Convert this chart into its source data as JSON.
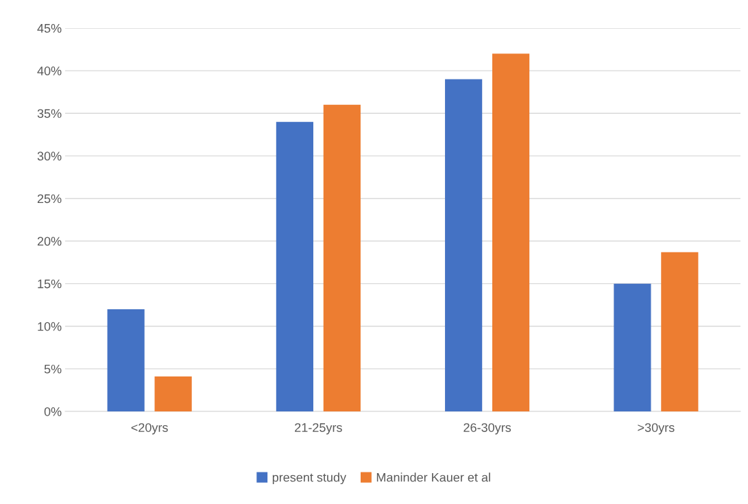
{
  "chart_data": {
    "type": "bar",
    "categories": [
      "<20yrs",
      "21-25yrs",
      "26-30yrs",
      ">30yrs"
    ],
    "series": [
      {
        "name": "present study",
        "color": "#4472c4",
        "values": [
          12,
          34,
          39,
          15
        ]
      },
      {
        "name": "Maninder Kauer et al",
        "color": "#ed7d31",
        "values": [
          4.1,
          36,
          42,
          18.7
        ]
      }
    ],
    "ylim": [
      0,
      45
    ],
    "yticks": [
      {
        "value": 0,
        "label": "0%"
      },
      {
        "value": 5,
        "label": "5%"
      },
      {
        "value": 10,
        "label": "10%"
      },
      {
        "value": 15,
        "label": "15%"
      },
      {
        "value": 20,
        "label": "20%"
      },
      {
        "value": 25,
        "label": "25%"
      },
      {
        "value": 30,
        "label": "30%"
      },
      {
        "value": 35,
        "label": "35%"
      },
      {
        "value": 40,
        "label": "40%"
      },
      {
        "value": 45,
        "label": "45%"
      }
    ],
    "grid": "y",
    "legend": "bottom"
  }
}
